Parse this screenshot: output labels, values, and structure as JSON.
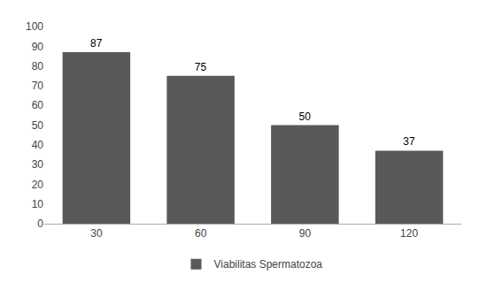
{
  "chart_data": {
    "type": "bar",
    "categories": [
      "30",
      "60",
      "90",
      "120"
    ],
    "series": [
      {
        "name": "Viabilitas Spermatozoa",
        "color": "#595959",
        "values": [
          87,
          75,
          50,
          37
        ]
      }
    ],
    "ylim": [
      0,
      100
    ],
    "yticks": [
      0,
      10,
      20,
      30,
      40,
      50,
      60,
      70,
      80,
      90,
      100
    ],
    "grid": false,
    "legend": "bottom",
    "data_labels": true
  }
}
